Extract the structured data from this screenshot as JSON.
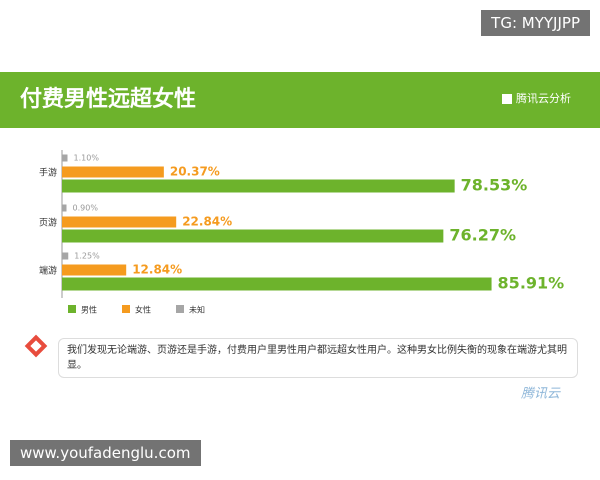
{
  "chart_data": {
    "type": "hbar",
    "title": "付费男性远超女性",
    "categories": [
      "手游",
      "页游",
      "端游"
    ],
    "series": [
      {
        "name": "未知",
        "color": "#a6a6a6",
        "values": [
          1.1,
          0.9,
          1.25
        ],
        "value_labels": [
          "1.10%",
          "0.90%",
          "1.25%"
        ]
      },
      {
        "name": "女性",
        "color": "#f59b1f",
        "values": [
          20.37,
          22.84,
          12.84
        ],
        "value_labels": [
          "20.37%",
          "22.84%",
          "12.84%"
        ]
      },
      {
        "name": "男性",
        "color": "#6db32c",
        "values": [
          78.53,
          76.27,
          85.91
        ],
        "value_labels": [
          "78.53%",
          "76.27%",
          "85.91%"
        ]
      }
    ],
    "legend_order": [
      "男性",
      "女性",
      "未知"
    ]
  },
  "header": {
    "logo": "腾讯云分析"
  },
  "note": "我们发现无论端游、页游还是手游，付费用户里男性用户都远超女性用户。这种男女比例失衡的现象在端游尤其明显。",
  "footer_logo": "腾讯云",
  "watermarks": [
    "TG: MYYJJPP",
    "www.youfadenglu.com"
  ]
}
